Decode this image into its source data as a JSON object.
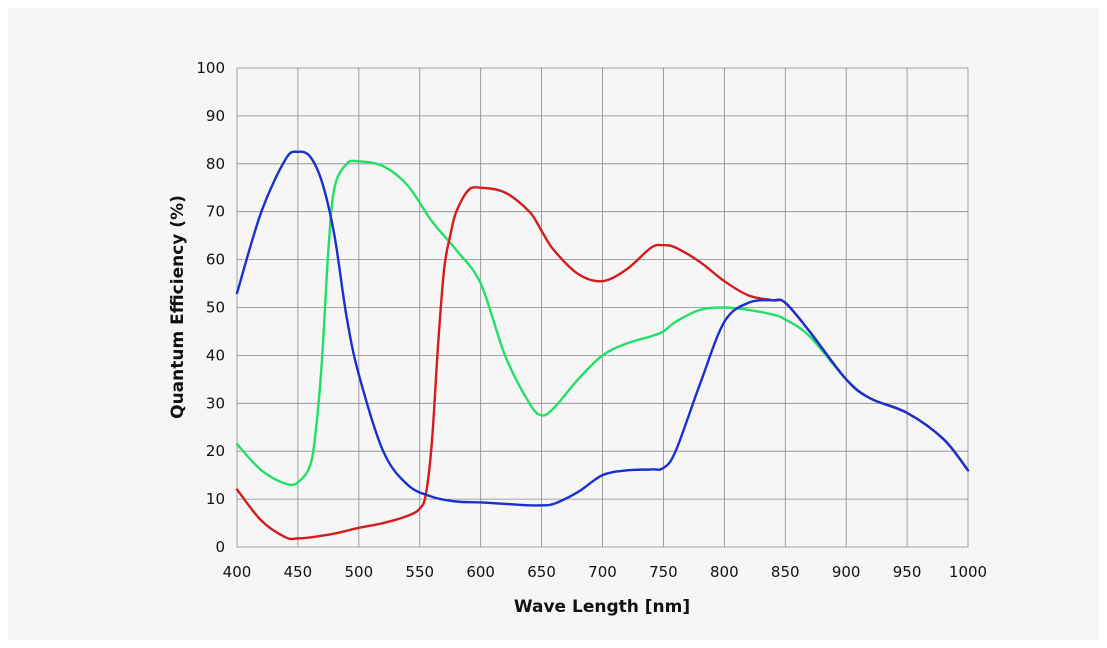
{
  "chart_data": {
    "type": "line",
    "title": "",
    "xlabel": "Wave Length [nm]",
    "ylabel": "Quantum Efficiency (%)",
    "xlim": [
      400,
      1000
    ],
    "ylim": [
      0,
      100
    ],
    "xticks": [
      400,
      450,
      500,
      550,
      600,
      650,
      700,
      750,
      800,
      850,
      900,
      950,
      1000
    ],
    "yticks": [
      0,
      10,
      20,
      30,
      40,
      50,
      60,
      70,
      80,
      90,
      100
    ],
    "grid": true,
    "legend": "none",
    "series": [
      {
        "color": "#1a2fcf",
        "x": [
          400,
          420,
          440,
          450,
          460,
          470,
          480,
          490,
          500,
          520,
          540,
          560,
          580,
          600,
          620,
          640,
          650,
          660,
          680,
          700,
          720,
          740,
          750,
          760,
          780,
          800,
          820,
          840,
          850,
          870,
          900,
          920,
          950,
          980,
          1000
        ],
        "y": [
          53,
          70,
          81,
          82.5,
          81.5,
          76,
          65,
          48,
          36,
          20,
          13,
          10.5,
          9.5,
          9.3,
          9,
          8.7,
          8.7,
          9,
          11.5,
          15,
          16,
          16.2,
          16.5,
          20,
          34,
          47,
          51,
          51.5,
          51,
          45,
          35,
          31,
          28,
          22.5,
          16
        ]
      },
      {
        "color": "#22e067",
        "x": [
          400,
          420,
          440,
          450,
          460,
          465,
          470,
          475,
          480,
          490,
          500,
          520,
          540,
          560,
          580,
          600,
          620,
          640,
          650,
          660,
          680,
          700,
          720,
          740,
          750,
          760,
          780,
          800,
          820,
          840,
          850,
          870,
          900,
          920,
          950,
          980,
          1000
        ],
        "y": [
          21.5,
          16,
          13.2,
          13.5,
          17,
          25,
          40,
          62,
          75,
          80,
          80.5,
          79.5,
          75.5,
          68,
          62,
          55,
          40,
          30,
          27.5,
          29,
          35,
          40,
          42.5,
          44,
          45,
          47,
          49.5,
          50,
          49.5,
          48.5,
          47.5,
          44,
          35,
          31,
          28,
          22.5,
          16
        ]
      },
      {
        "color": "#d41c1c",
        "x": [
          400,
          420,
          440,
          450,
          460,
          480,
          500,
          520,
          540,
          550,
          555,
          560,
          565,
          570,
          575,
          580,
          590,
          600,
          620,
          640,
          650,
          660,
          680,
          700,
          720,
          740,
          750,
          760,
          780,
          800,
          820,
          840,
          850,
          870,
          900,
          920,
          950,
          980,
          1000
        ],
        "y": [
          12,
          5.5,
          2,
          1.8,
          2,
          2.8,
          4,
          5,
          6.5,
          8,
          11,
          22,
          42,
          58,
          65,
          70,
          74.5,
          75,
          74,
          70,
          66,
          62,
          57,
          55.5,
          58,
          62.5,
          63,
          62.5,
          59.5,
          55.5,
          52.5,
          51.5,
          51,
          45,
          35,
          31,
          28,
          22.5,
          16
        ]
      }
    ]
  }
}
